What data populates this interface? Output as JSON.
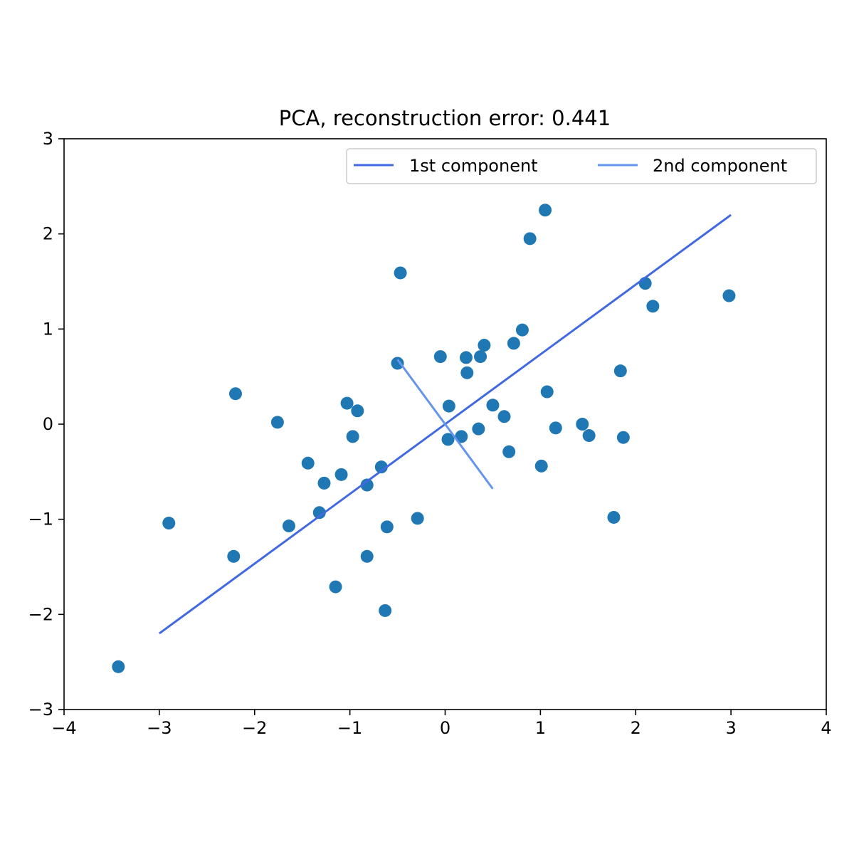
{
  "chart_data": {
    "type": "scatter",
    "title": "PCA, reconstruction error: 0.441",
    "xlabel": "",
    "ylabel": "",
    "xlim": [
      -4,
      4
    ],
    "ylim": [
      -3,
      3
    ],
    "xticks": [
      -4,
      -3,
      -2,
      -1,
      0,
      1,
      2,
      3,
      4
    ],
    "yticks": [
      -3,
      -2,
      -1,
      0,
      1,
      2,
      3
    ],
    "xtick_labels": [
      "−4",
      "−3",
      "−2",
      "−1",
      "0",
      "1",
      "2",
      "3",
      "4"
    ],
    "ytick_labels": [
      "−3",
      "−2",
      "−1",
      "0",
      "1",
      "2",
      "3"
    ],
    "grid": false,
    "legend_placement": "top-right",
    "scatter_color": "#1f77b4",
    "points": [
      [
        1.05,
        2.25
      ],
      [
        0.89,
        1.95
      ],
      [
        -0.47,
        1.59
      ],
      [
        2.1,
        1.48
      ],
      [
        2.98,
        1.35
      ],
      [
        2.18,
        1.24
      ],
      [
        0.81,
        0.99
      ],
      [
        0.72,
        0.85
      ],
      [
        0.41,
        0.83
      ],
      [
        0.37,
        0.71
      ],
      [
        -0.05,
        0.71
      ],
      [
        0.22,
        0.7
      ],
      [
        -0.5,
        0.64
      ],
      [
        1.84,
        0.56
      ],
      [
        0.23,
        0.54
      ],
      [
        1.07,
        0.34
      ],
      [
        -2.2,
        0.32
      ],
      [
        -1.03,
        0.22
      ],
      [
        0.5,
        0.2
      ],
      [
        0.04,
        0.19
      ],
      [
        -0.92,
        0.14
      ],
      [
        0.62,
        0.08
      ],
      [
        -1.76,
        0.02
      ],
      [
        1.44,
        0.0
      ],
      [
        1.16,
        -0.04
      ],
      [
        0.35,
        -0.05
      ],
      [
        1.51,
        -0.12
      ],
      [
        0.17,
        -0.13
      ],
      [
        -0.97,
        -0.13
      ],
      [
        1.87,
        -0.14
      ],
      [
        0.03,
        -0.16
      ],
      [
        0.67,
        -0.29
      ],
      [
        -1.44,
        -0.41
      ],
      [
        1.01,
        -0.44
      ],
      [
        -0.67,
        -0.45
      ],
      [
        -1.09,
        -0.53
      ],
      [
        -1.27,
        -0.62
      ],
      [
        -0.82,
        -0.64
      ],
      [
        -1.32,
        -0.93
      ],
      [
        -0.29,
        -0.99
      ],
      [
        1.77,
        -0.98
      ],
      [
        -2.9,
        -1.04
      ],
      [
        -1.64,
        -1.07
      ],
      [
        -0.61,
        -1.08
      ],
      [
        -2.22,
        -1.39
      ],
      [
        -0.82,
        -1.39
      ],
      [
        -1.15,
        -1.71
      ],
      [
        -0.63,
        -1.96
      ],
      [
        -3.43,
        -2.55
      ]
    ],
    "series": [
      {
        "name": "1st component",
        "color": "#4169e1",
        "x": [
          -3.0,
          3.0
        ],
        "y": [
          -2.2,
          2.2
        ]
      },
      {
        "name": "2nd component",
        "color": "#6495ed",
        "x": [
          -0.5,
          0.5
        ],
        "y": [
          0.68,
          -0.68
        ]
      }
    ]
  }
}
